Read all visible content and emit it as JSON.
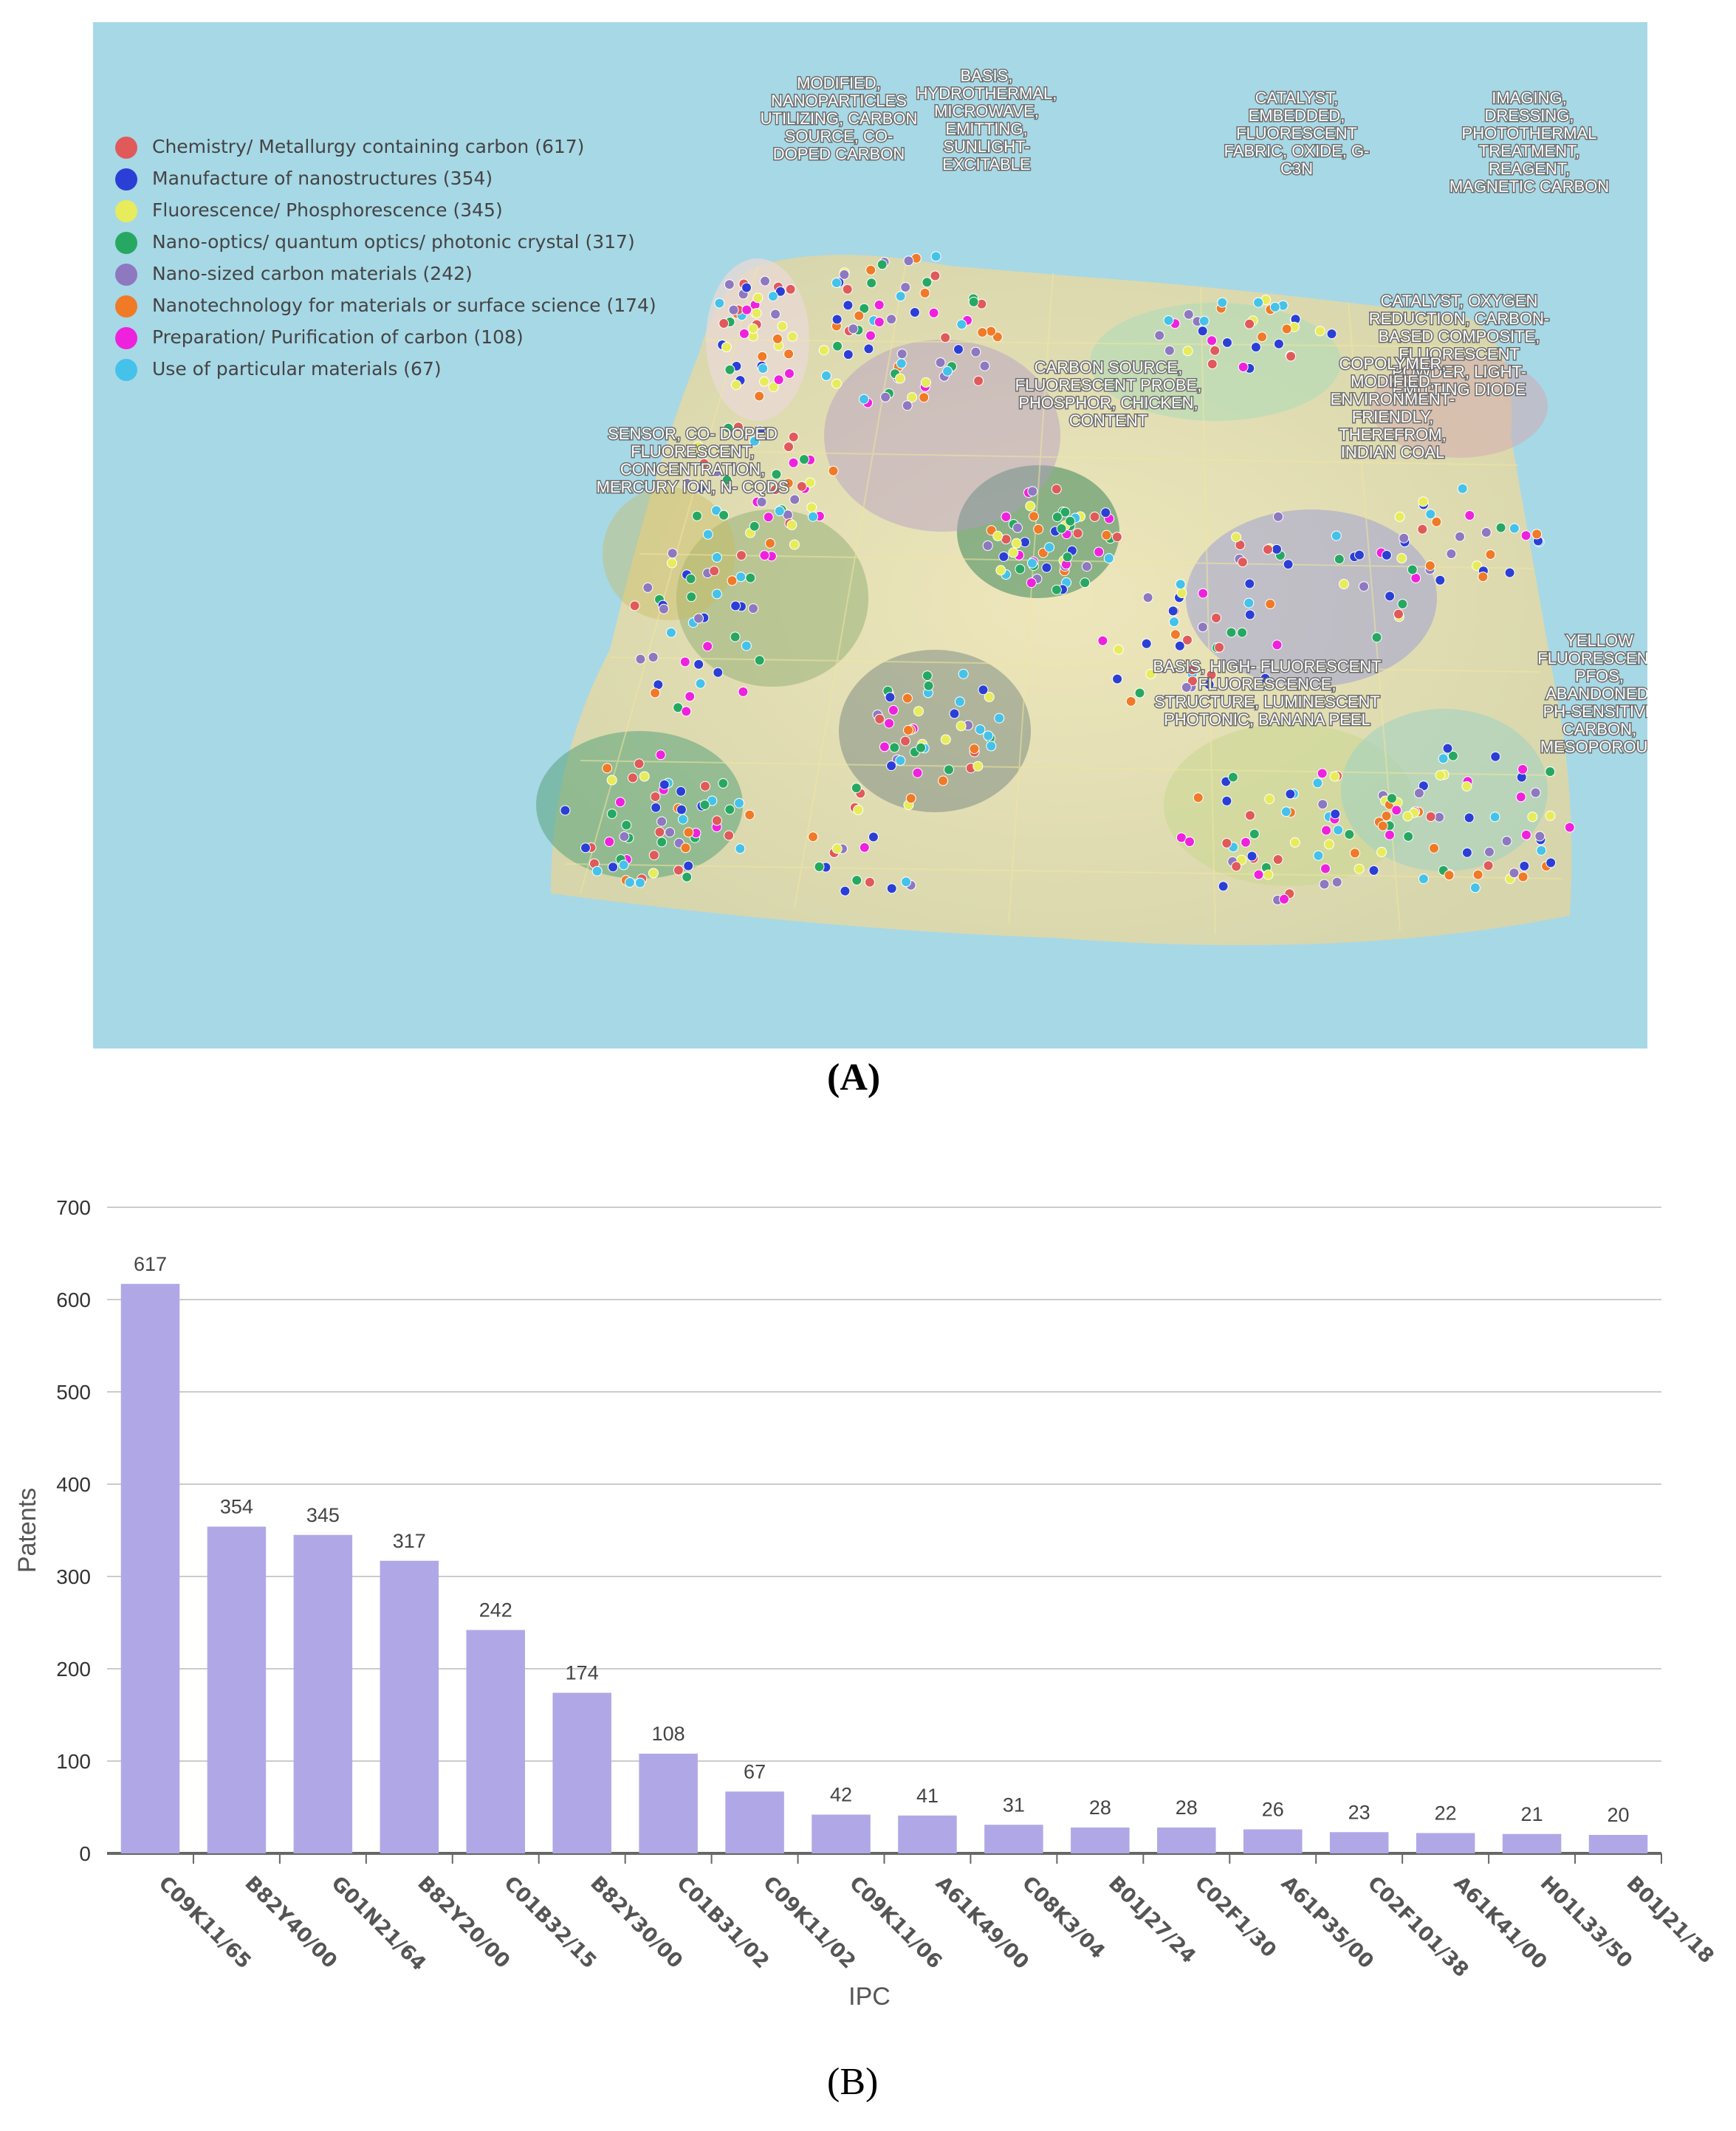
{
  "panel_a": {
    "caption": "A",
    "legend": [
      {
        "label": "Chemistry/ Metallurgy containing carbon (617)",
        "color": "#e05a5a"
      },
      {
        "label": "Manufacture of nanostructures (354)",
        "color": "#2b3fd6"
      },
      {
        "label": "Fluorescence/ Phosphorescence (345)",
        "color": "#e8ec5a"
      },
      {
        "label": "Nano-optics/ quantum optics/ photonic crystal (317)",
        "color": "#27a862"
      },
      {
        "label": "Nano-sized carbon materials (242)",
        "color": "#8e78c0"
      },
      {
        "label": "Nanotechnology for materials or surface science (174)",
        "color": "#f07a26"
      },
      {
        "label": "Preparation/ Purification of carbon (108)",
        "color": "#ee22dd"
      },
      {
        "label": "Use of particular materials (67)",
        "color": "#45c2ea"
      }
    ],
    "topic_labels": [
      [
        "MODIFIED,",
        "NANOPARTICLES",
        "UTILIZING, CARBON",
        "SOURCE, CO-",
        "DOPED CARBON"
      ],
      [
        "BASIS,",
        "HYDROTHERMAL,",
        "MICROWAVE,",
        "EMITTING,",
        "SUNLIGHT-",
        "EXCITABLE"
      ],
      [
        "CATALYST,",
        "EMBEDDED,",
        "FLUORESCENT",
        "FABRIC, OXIDE, G-",
        "C3N"
      ],
      [
        "IMAGING,",
        "DRESSING,",
        "PHOTOTHERMAL",
        "TREATMENT,",
        "REAGENT,",
        "MAGNETIC CARBON"
      ],
      [
        "CATALYST, OXYGEN",
        "REDUCTION, CARBON-",
        "BASED COMPOSITE,",
        "FLUORESCENT",
        "POWDER, LIGHT-",
        "EMITTING DIODE"
      ],
      [
        "CARBON SOURCE,",
        "FLUORESCENT PROBE,",
        "PHOSPHOR, CHICKEN,",
        "CONTENT"
      ],
      [
        "COPOLYMER,",
        "MODIFIED,",
        "ENVIRONMENT-",
        "FRIENDLY,",
        "THEREFROM,",
        "INDIAN COAL"
      ],
      [
        "SENSOR, CO- DOPED",
        "FLUORESCENT,",
        "CONCENTRATION,",
        "MERCURY ION, N- CQDS"
      ],
      [
        "BASIS, HIGH- FLUORESCENT",
        "FLUORESCENCE,",
        "STRUCTURE, LUMINESCENT",
        "PHOTONIC, BANANA PEEL"
      ],
      [
        "YELLOW",
        "FLUORESCENT,",
        "PFOS,",
        "ABANDONED,",
        "PH-SENSITIVE",
        "CARBON,",
        "MESOPOROUS"
      ]
    ]
  },
  "panel_b": {
    "caption": "(B)"
  },
  "chart_data": {
    "type": "bar",
    "categories": [
      "C09K11/65",
      "B82Y40/00",
      "G01N21/64",
      "B82Y20/00",
      "C01B32/15",
      "B82Y30/00",
      "C01B31/02",
      "C09K11/02",
      "C09K11/06",
      "A61K49/00",
      "C08K3/04",
      "B01J27/24",
      "C02F1/30",
      "A61P35/00",
      "C02F101/38",
      "A61K41/00",
      "H01L33/50",
      "B01J21/18"
    ],
    "values": [
      617,
      354,
      345,
      317,
      242,
      174,
      108,
      67,
      42,
      41,
      31,
      28,
      28,
      26,
      23,
      22,
      21,
      20
    ],
    "xlabel": "IPC",
    "ylabel": "Patents",
    "ylim": [
      0,
      700
    ],
    "yticks": [
      0,
      100,
      200,
      300,
      400,
      500,
      600,
      700
    ],
    "grid": true,
    "bar_color": "#b0a8e6"
  }
}
